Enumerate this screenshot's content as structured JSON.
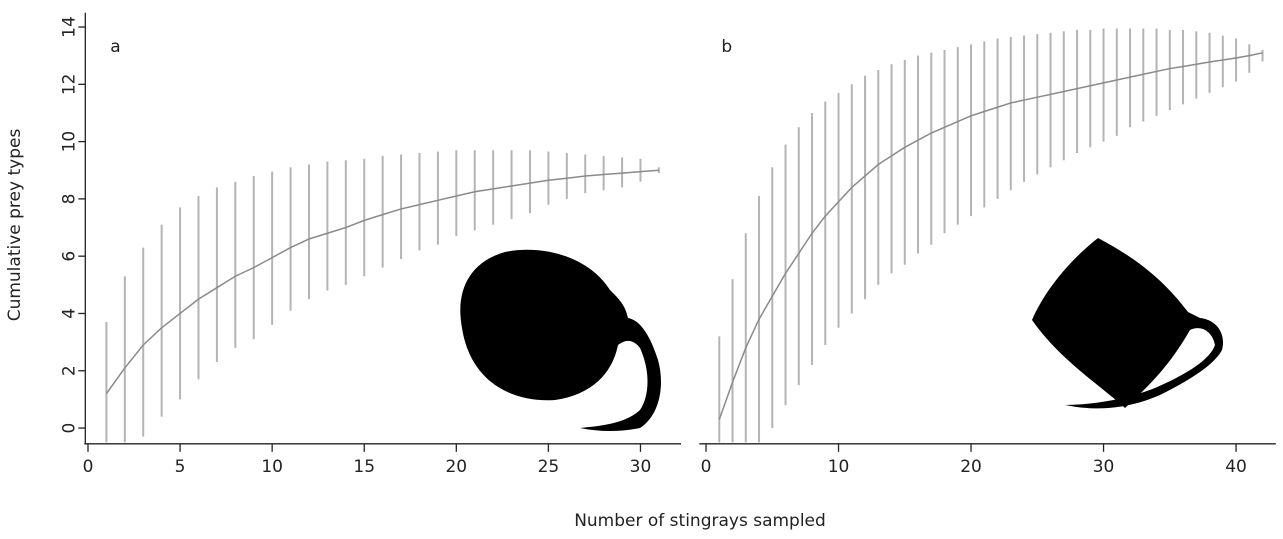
{
  "chart_data": [
    {
      "type": "line",
      "label": "a",
      "ylabel": "Cumulative prey types",
      "xlabel": "Number of stingrays sampled",
      "x": [
        1,
        2,
        3,
        4,
        5,
        6,
        7,
        8,
        9,
        10,
        11,
        12,
        13,
        14,
        15,
        16,
        17,
        18,
        19,
        20,
        21,
        22,
        23,
        24,
        25,
        26,
        27,
        28,
        29,
        30,
        31
      ],
      "series": [
        {
          "color": "#8a8a8a",
          "bar_color": "#b4b4b4",
          "values": [
            1.2,
            2.1,
            2.9,
            3.5,
            4.0,
            4.5,
            4.9,
            5.3,
            5.6,
            5.95,
            6.3,
            6.6,
            6.8,
            7.0,
            7.25,
            7.45,
            7.65,
            7.8,
            7.95,
            8.1,
            8.25,
            8.35,
            8.45,
            8.55,
            8.65,
            8.72,
            8.8,
            8.85,
            8.9,
            8.95,
            9.0
          ],
          "lower": [
            -0.5,
            -0.5,
            -0.3,
            0.4,
            1.0,
            1.7,
            2.3,
            2.8,
            3.1,
            3.6,
            4.1,
            4.5,
            4.8,
            5.0,
            5.3,
            5.6,
            5.9,
            6.2,
            6.4,
            6.7,
            6.9,
            7.1,
            7.3,
            7.5,
            7.8,
            8.0,
            8.2,
            8.3,
            8.4,
            8.6,
            8.9
          ],
          "upper": [
            3.7,
            5.3,
            6.3,
            7.1,
            7.7,
            8.1,
            8.4,
            8.6,
            8.8,
            8.95,
            9.1,
            9.2,
            9.3,
            9.35,
            9.4,
            9.5,
            9.55,
            9.6,
            9.65,
            9.7,
            9.7,
            9.7,
            9.7,
            9.7,
            9.65,
            9.6,
            9.55,
            9.5,
            9.45,
            9.4,
            9.1
          ]
        }
      ],
      "xlim": [
        -0.2,
        32.2
      ],
      "ylim": [
        -0.55,
        14.5
      ],
      "xticks": [
        0,
        5,
        10,
        15,
        20,
        25,
        30
      ],
      "yticks": [
        0,
        2,
        4,
        6,
        8,
        10,
        12,
        14
      ]
    },
    {
      "type": "line",
      "label": "b",
      "x": [
        1,
        2,
        3,
        4,
        5,
        6,
        7,
        8,
        9,
        10,
        11,
        12,
        13,
        14,
        15,
        16,
        17,
        18,
        19,
        20,
        21,
        22,
        23,
        24,
        25,
        26,
        27,
        28,
        29,
        30,
        31,
        32,
        33,
        34,
        35,
        36,
        37,
        38,
        39,
        40,
        41,
        42
      ],
      "series": [
        {
          "color": "#8a8a8a",
          "bar_color": "#b4b4b4",
          "values": [
            0.3,
            1.6,
            2.8,
            3.8,
            4.6,
            5.4,
            6.1,
            6.8,
            7.4,
            7.9,
            8.4,
            8.8,
            9.2,
            9.5,
            9.8,
            10.05,
            10.3,
            10.5,
            10.7,
            10.9,
            11.05,
            11.2,
            11.35,
            11.45,
            11.55,
            11.65,
            11.75,
            11.85,
            11.95,
            12.05,
            12.15,
            12.25,
            12.35,
            12.45,
            12.55,
            12.62,
            12.7,
            12.78,
            12.85,
            12.92,
            13.0,
            13.1
          ],
          "lower": [
            -0.5,
            -0.5,
            -0.5,
            -0.5,
            0.0,
            0.8,
            1.5,
            2.2,
            2.9,
            3.5,
            4.0,
            4.5,
            5.0,
            5.4,
            5.7,
            6.1,
            6.4,
            6.8,
            7.1,
            7.4,
            7.7,
            8.0,
            8.3,
            8.6,
            8.85,
            9.1,
            9.35,
            9.6,
            9.8,
            10.0,
            10.2,
            10.5,
            10.7,
            10.9,
            11.1,
            11.3,
            11.5,
            11.7,
            11.9,
            12.1,
            12.4,
            12.8
          ],
          "upper": [
            3.2,
            5.2,
            6.8,
            8.1,
            9.1,
            9.9,
            10.5,
            11.0,
            11.4,
            11.7,
            12.0,
            12.3,
            12.5,
            12.7,
            12.85,
            13.0,
            13.1,
            13.2,
            13.3,
            13.4,
            13.5,
            13.6,
            13.65,
            13.7,
            13.75,
            13.8,
            13.85,
            13.9,
            13.9,
            13.95,
            13.95,
            13.95,
            13.95,
            13.95,
            13.9,
            13.9,
            13.85,
            13.8,
            13.7,
            13.6,
            13.4,
            13.2
          ]
        }
      ],
      "xlim": [
        -0.5,
        43
      ],
      "ylim": [
        -0.55,
        14.5
      ],
      "xticks": [
        0,
        10,
        20,
        30,
        40
      ]
    }
  ]
}
